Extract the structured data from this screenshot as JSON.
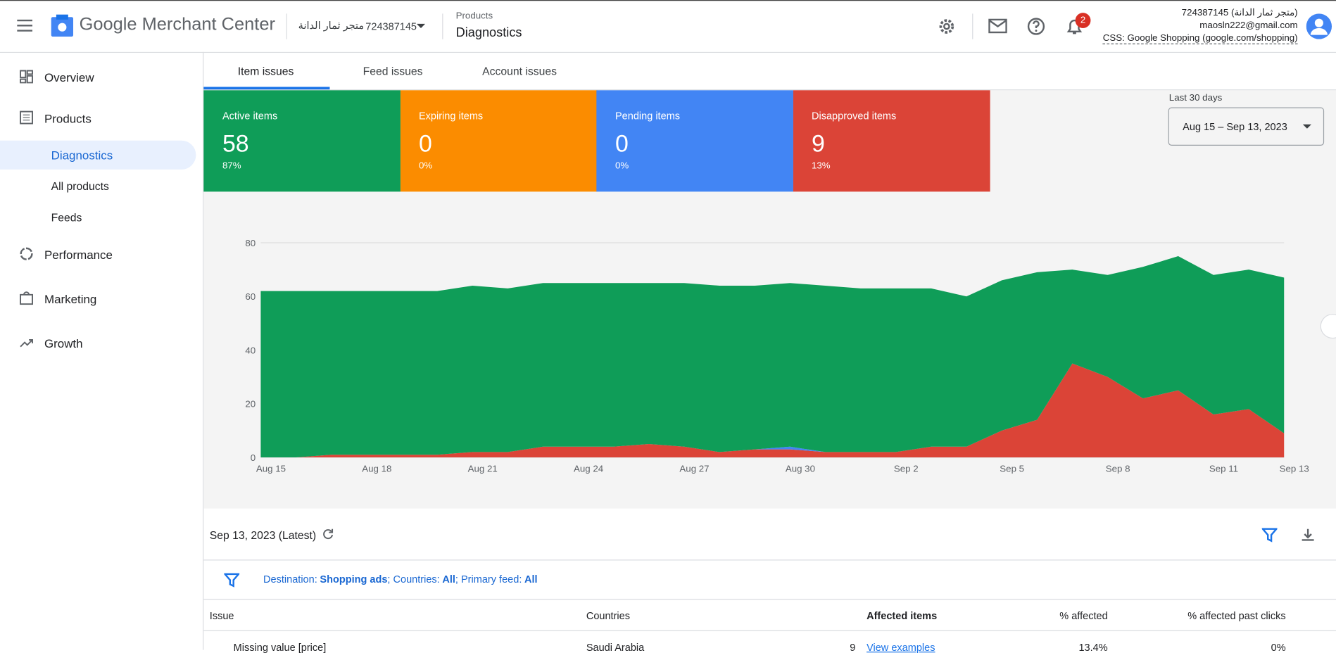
{
  "header": {
    "product": "Google Merchant Center",
    "account_name": "متجر ثمار الدانة",
    "account_id": "724387145",
    "breadcrumb": "Products",
    "page": "Diagnostics",
    "notifications": "2",
    "user_account": "724387145 (متجر ثمار الدانة)",
    "email": "maosln222@gmail.com",
    "css": "CSS: Google Shopping (google.com/shopping)"
  },
  "nav": [
    "Overview",
    "Products",
    "Diagnostics",
    "All products",
    "Feeds",
    "Performance",
    "Marketing",
    "Growth"
  ],
  "tabs": [
    "Item issues",
    "Feed issues",
    "Account issues"
  ],
  "cards": [
    {
      "label": "Active items",
      "value": "58",
      "percent": "87%",
      "color": "#0f9d58"
    },
    {
      "label": "Expiring items",
      "value": "0",
      "percent": "0%",
      "color": "#fb8c00"
    },
    {
      "label": "Pending items",
      "value": "0",
      "percent": "0%",
      "color": "#4285f4"
    },
    {
      "label": "Disapproved items",
      "value": "9",
      "percent": "13%",
      "color": "#db4437"
    }
  ],
  "date_range": {
    "label": "Last 30 days",
    "value": "Aug 15 – Sep 13, 2023"
  },
  "chart_data": {
    "type": "area",
    "stacked": true,
    "categories": [
      "Aug 15",
      null,
      null,
      "Aug 18",
      null,
      null,
      "Aug 21",
      null,
      null,
      "Aug 24",
      null,
      null,
      "Aug 27",
      null,
      null,
      "Aug 30",
      null,
      null,
      "Sep 2",
      null,
      null,
      "Sep 5",
      null,
      null,
      "Sep 8",
      null,
      null,
      "Sep 11",
      null,
      "Sep 13"
    ],
    "series": [
      {
        "color": "#db4437",
        "values": [
          0,
          0,
          1,
          1,
          1,
          1,
          2,
          2,
          4,
          4,
          4,
          5,
          4,
          2,
          3,
          3,
          2,
          2,
          2,
          4,
          4,
          10,
          14,
          35,
          30,
          22,
          25,
          16,
          18,
          9
        ]
      },
      {
        "color": "#4285f4",
        "values": [
          0,
          0,
          0,
          0,
          0,
          0,
          0,
          0,
          0,
          0,
          0,
          0,
          0,
          0,
          0,
          1,
          0,
          0,
          0,
          0,
          0,
          0,
          0,
          0,
          0,
          0,
          0,
          0,
          0,
          0
        ]
      },
      {
        "color": "#fb8c00",
        "values": [
          0,
          0,
          0,
          0,
          0,
          0,
          0,
          0,
          0,
          0,
          0,
          0,
          0,
          0,
          0,
          0,
          0,
          0,
          0,
          0,
          0,
          0,
          0,
          0,
          0,
          0,
          0,
          0,
          0,
          0
        ]
      },
      {
        "color": "#0f9d58",
        "values": [
          62,
          62,
          61,
          61,
          61,
          61,
          62,
          61,
          61,
          61,
          61,
          60,
          61,
          62,
          61,
          61,
          62,
          61,
          61,
          59,
          56,
          56,
          55,
          35,
          38,
          49,
          50,
          52,
          52,
          58
        ]
      }
    ],
    "ylim": [
      0,
      80
    ],
    "yticks": [
      0,
      20,
      40,
      60,
      80
    ],
    "grid": true
  },
  "table": {
    "date": "Sep 13, 2023 (Latest)",
    "filters": [
      {
        "label": "Destination:",
        "value": "Shopping ads"
      },
      {
        "label": "; Countries:",
        "value": "All"
      },
      {
        "label": "; Primary feed:",
        "value": "All"
      }
    ],
    "headers": [
      "Issue",
      "Countries",
      "Affected items",
      "% affected",
      "% affected past clicks"
    ],
    "rows": [
      [
        "Missing value [price]",
        "Saudi Arabia",
        "9",
        "View examples",
        "13.4%",
        "0%"
      ]
    ]
  }
}
